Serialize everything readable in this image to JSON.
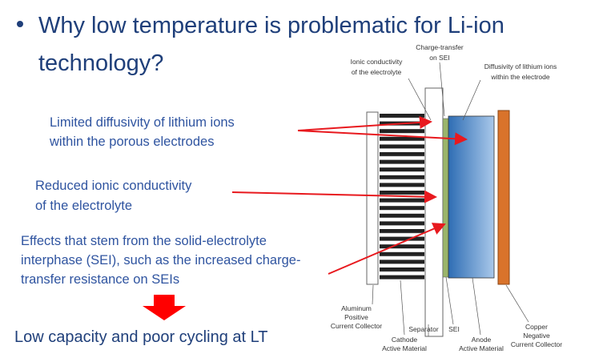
{
  "header": {
    "title": {
      "lines": [
        "Why low temperature is problematic for Li-ion",
        "technology?"
      ]
    }
  },
  "callouts": [
    {
      "lines": [
        "Limited diffusivity of lithium ions",
        "within the porous electrodes"
      ]
    },
    {
      "lines": [
        "Reduced ionic conductivity",
        "of the electrolyte"
      ]
    },
    {
      "lines": [
        "Effects that stem from the solid-electrolyte",
        "interphase (SEI), such as the increased charge-",
        "transfer resistance on SEIs"
      ]
    }
  ],
  "conclusion": "Low capacity and poor cycling at LT",
  "diagram": {
    "top_labels": [
      {
        "lines": [
          "Ionic conductivity",
          "of the electrolyte"
        ]
      },
      {
        "lines": [
          "Charge-transfer",
          "on SEI"
        ]
      },
      {
        "lines": [
          "Diffusivity of lithium ions",
          "within the electrode"
        ]
      }
    ],
    "bottom_labels": [
      {
        "lines": [
          "Aluminum",
          "Positive",
          "Current Collector"
        ]
      },
      {
        "lines": [
          "Cathode",
          "Active Material"
        ]
      },
      {
        "lines": [
          "Separator"
        ]
      },
      {
        "lines": [
          "SEI"
        ]
      },
      {
        "lines": [
          "Anode",
          "Active Material"
        ]
      },
      {
        "lines": [
          "Copper",
          "Negative",
          "Current Collector"
        ]
      }
    ]
  }
}
